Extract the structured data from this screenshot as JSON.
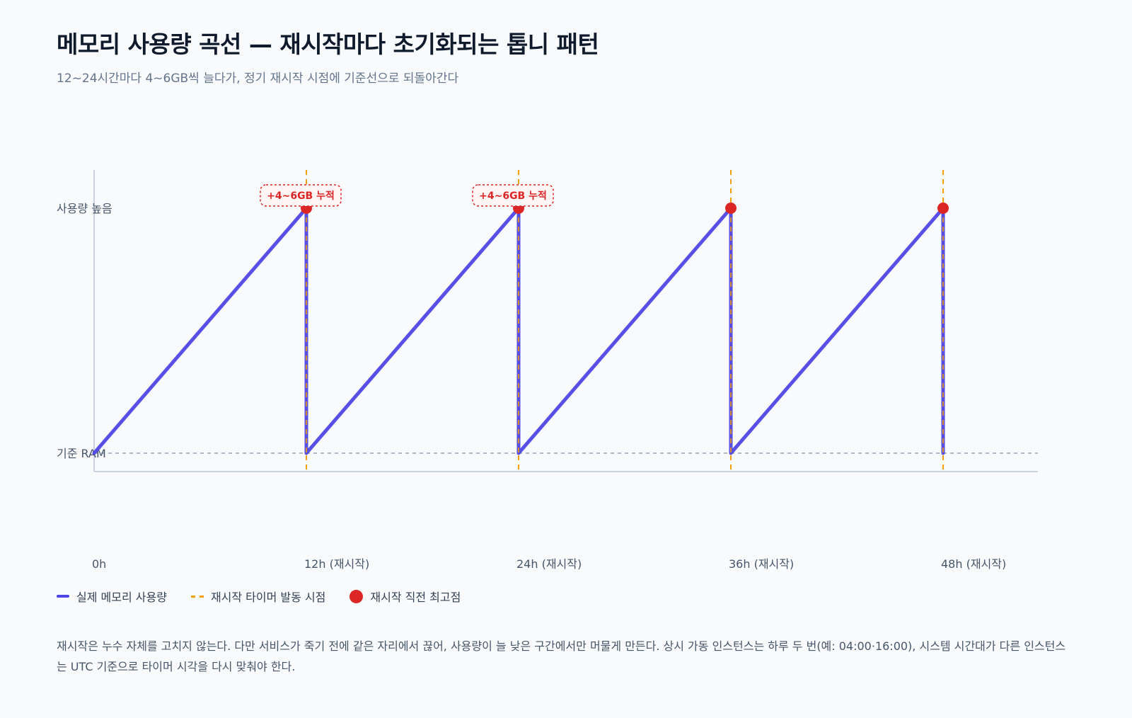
{
  "header": {
    "title": "메모리 사용량 곡선 — 재시작마다 초기화되는 톱니 패턴",
    "subtitle": "12~24시간마다 4~6GB씩 늘다가, 정기 재시작 시점에 기준선으로 되돌아간다"
  },
  "chart_data": {
    "type": "line",
    "x_unit": "h",
    "xlim": [
      0,
      48
    ],
    "x_ticks": [
      {
        "x": 0,
        "label": "0h"
      },
      {
        "x": 12,
        "label": "12h (재시작)"
      },
      {
        "x": 24,
        "label": "24h (재시작)"
      },
      {
        "x": 36,
        "label": "36h (재시작)"
      },
      {
        "x": 48,
        "label": "48h (재시작)"
      }
    ],
    "y_ticks": [
      {
        "y": 0,
        "label": "기준 RAM"
      },
      {
        "y": 1,
        "label": "사용량 높음"
      }
    ],
    "ylim": [
      -0.08,
      1.15
    ],
    "baseline_y": 0,
    "series": [
      {
        "name": "실제 메모리 사용량",
        "color": "#4f46e5",
        "points": [
          [
            0,
            0
          ],
          [
            12,
            1
          ],
          [
            12,
            0
          ],
          [
            24,
            1
          ],
          [
            24,
            0
          ],
          [
            36,
            1
          ],
          [
            36,
            0
          ],
          [
            48,
            1
          ],
          [
            48,
            0
          ]
        ]
      }
    ],
    "restart_markers": {
      "name": "재시작 타이머 발동 시점",
      "color": "#f59e0b",
      "x": [
        12,
        24,
        36,
        48
      ]
    },
    "peaks": {
      "name": "재시작 직전 최고점",
      "color": "#dc2626",
      "points": [
        [
          12,
          1
        ],
        [
          24,
          1
        ],
        [
          36,
          1
        ],
        [
          48,
          1
        ]
      ]
    },
    "annotations": [
      {
        "x": 12,
        "y": 1,
        "text": "+4~6GB 누적"
      },
      {
        "x": 24,
        "y": 1,
        "text": "+4~6GB 누적"
      }
    ],
    "grid": false,
    "legend_position": "bottom-left"
  },
  "legend": {
    "usage": "실제 메모리 사용량",
    "restart": "재시작 타이머 발동 시점",
    "peak": "재시작 직전 최고점"
  },
  "colors": {
    "usage": "#4f46e5",
    "restart": "#f59e0b",
    "peak": "#dc2626",
    "axis": "#cbd5e1",
    "baseline": "#94a3b8"
  },
  "note": "재시작은 누수 자체를 고치지 않는다. 다만 서비스가 죽기 전에 같은 자리에서 끊어, 사용량이 늘 낮은 구간에서만 머물게 만든다. 상시 가동 인스턴스는 하루 두 번(예: 04:00·16:00), 시스템 시간대가 다른 인스턴스는 UTC 기준으로 타이머 시각을 다시 맞춰야 한다."
}
